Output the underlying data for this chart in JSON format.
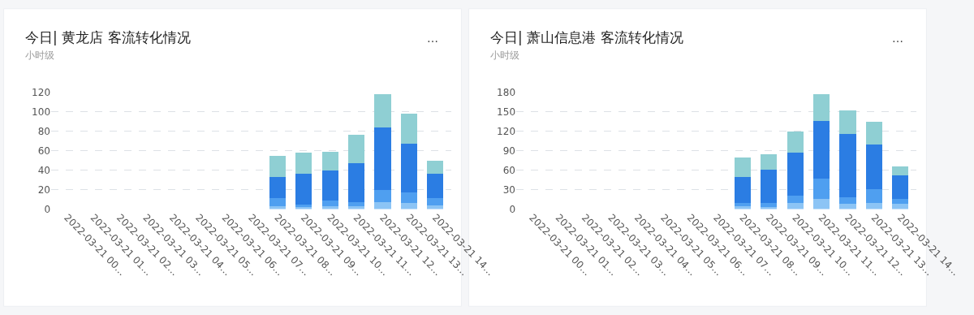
{
  "chart_data": [
    {
      "type": "bar",
      "title": "今日| 黄龙店 客流转化情况",
      "subtitle": "小时级",
      "annotations": [
        "…"
      ],
      "categories": [
        "2022-03-21 00…",
        "2022-03-21 01…",
        "2022-03-21 02…",
        "2022-03-21 03…",
        "2022-03-21 04…",
        "2022-03-21 05…",
        "2022-03-21 06…",
        "2022-03-21 07…",
        "2022-03-21 08…",
        "2022-03-21 09…",
        "2022-03-21 10…",
        "2022-03-21 11…",
        "2022-03-21 12…",
        "2022-03-21 13…",
        "2022-03-21 14…"
      ],
      "stacked": true,
      "ylim": [
        0,
        120
      ],
      "yticks": [
        0,
        20,
        40,
        60,
        80,
        100,
        120
      ],
      "grid": "y",
      "series": [
        {
          "color": "#8cc4f5",
          "values": [
            null,
            null,
            null,
            null,
            null,
            null,
            null,
            null,
            3,
            2,
            3,
            3,
            7,
            6,
            4
          ]
        },
        {
          "color": "#4f9ff0",
          "values": [
            null,
            null,
            null,
            null,
            null,
            null,
            null,
            null,
            8,
            3,
            6,
            4,
            13,
            11,
            7
          ]
        },
        {
          "color": "#2b7de3",
          "values": [
            null,
            null,
            null,
            null,
            null,
            null,
            null,
            null,
            22,
            31,
            31,
            40,
            64,
            50,
            25
          ]
        },
        {
          "color": "#8fcfd3",
          "values": [
            null,
            null,
            null,
            null,
            null,
            null,
            null,
            null,
            22,
            22,
            19,
            29,
            34,
            31,
            14
          ]
        }
      ]
    },
    {
      "type": "bar",
      "title": "今日| 萧山信息港 客流转化情况",
      "subtitle": "小时级",
      "annotations": [
        "…"
      ],
      "categories": [
        "2022-03-21 00…",
        "2022-03-21 01…",
        "2022-03-21 02…",
        "2022-03-21 03…",
        "2022-03-21 04…",
        "2022-03-21 05…",
        "2022-03-21 06…",
        "2022-03-21 07…",
        "2022-03-21 08…",
        "2022-03-21 09…",
        "2022-03-21 10…",
        "2022-03-21 11…",
        "2022-03-21 12…",
        "2022-03-21 13…",
        "2022-03-21 14…"
      ],
      "stacked": true,
      "ylim": [
        0,
        180
      ],
      "yticks": [
        0,
        30,
        60,
        90,
        120,
        150,
        180
      ],
      "grid": "y",
      "series": [
        {
          "color": "#8cc4f5",
          "values": [
            null,
            null,
            null,
            null,
            null,
            null,
            null,
            null,
            4,
            3,
            9,
            16,
            8,
            9,
            8
          ]
        },
        {
          "color": "#4f9ff0",
          "values": [
            null,
            null,
            null,
            null,
            null,
            null,
            null,
            null,
            5,
            6,
            12,
            31,
            10,
            22,
            8
          ]
        },
        {
          "color": "#2b7de3",
          "values": [
            null,
            null,
            null,
            null,
            null,
            null,
            null,
            null,
            40,
            52,
            66,
            89,
            98,
            68,
            36
          ]
        },
        {
          "color": "#8fcfd3",
          "values": [
            null,
            null,
            null,
            null,
            null,
            null,
            null,
            null,
            31,
            24,
            33,
            41,
            36,
            35,
            14
          ]
        }
      ]
    }
  ]
}
